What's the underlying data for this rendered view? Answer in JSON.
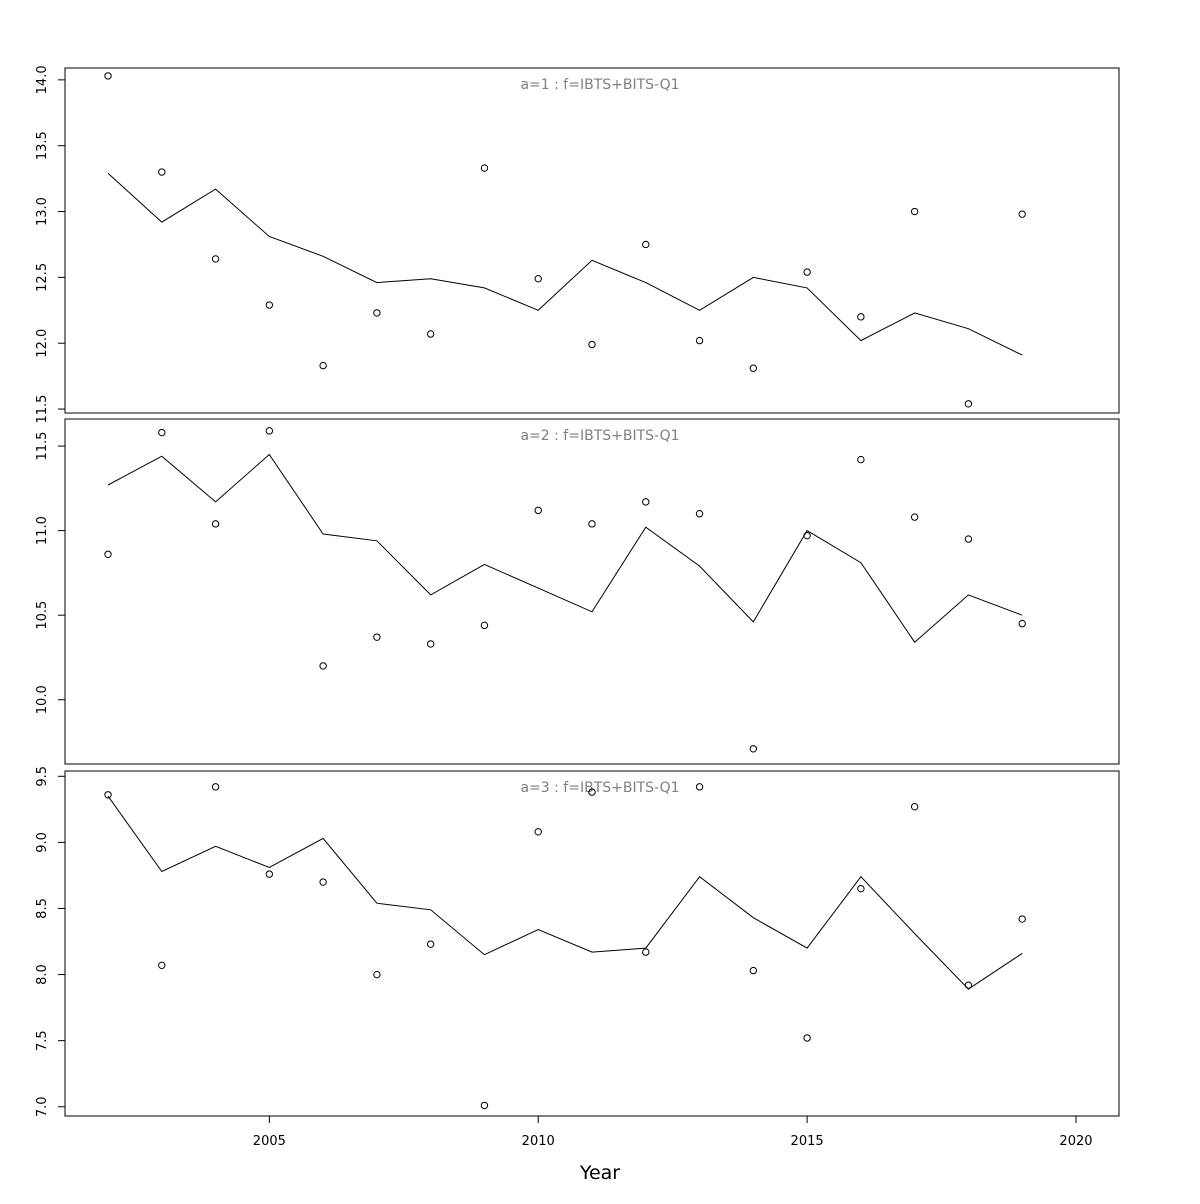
{
  "chart_data": {
    "type": "line",
    "xlabel": "Year",
    "x_ticks": [
      2005,
      2010,
      2015,
      2020
    ],
    "xlim": [
      2001.2,
      2020.8
    ],
    "series_style": {
      "line_color": "#000000",
      "point_color": "#000000",
      "title_color": "#808080"
    },
    "panels": [
      {
        "title": "a=1 : f=IBTS+BITS-Q1",
        "ylim": [
          11.47,
          14.09
        ],
        "y_ticks": [
          11.5,
          12.0,
          12.5,
          13.0,
          13.5,
          14.0
        ],
        "observed": {
          "x": [
            2002,
            2003,
            2004,
            2005,
            2006,
            2007,
            2008,
            2009,
            2010,
            2011,
            2012,
            2013,
            2014,
            2015,
            2016,
            2017,
            2018,
            2019
          ],
          "y": [
            14.03,
            13.3,
            12.64,
            12.29,
            11.83,
            12.23,
            12.07,
            13.33,
            12.49,
            11.99,
            12.75,
            12.02,
            11.81,
            12.54,
            12.2,
            13.0,
            11.54,
            12.98
          ]
        },
        "fitted": {
          "x": [
            2002,
            2003,
            2004,
            2005,
            2006,
            2007,
            2008,
            2009,
            2010,
            2011,
            2012,
            2013,
            2014,
            2015,
            2016,
            2017,
            2018,
            2019
          ],
          "y": [
            13.29,
            12.92,
            13.17,
            12.81,
            12.66,
            12.46,
            12.49,
            12.42,
            12.25,
            12.63,
            12.46,
            12.25,
            12.5,
            12.42,
            12.02,
            12.23,
            12.11,
            11.91
          ]
        }
      },
      {
        "title": "a=2 : f=IBTS+BITS-Q1",
        "ylim": [
          9.62,
          11.66
        ],
        "y_ticks": [
          10.0,
          10.5,
          11.0,
          11.5
        ],
        "observed": {
          "x": [
            2002,
            2003,
            2004,
            2005,
            2006,
            2007,
            2008,
            2009,
            2010,
            2011,
            2012,
            2013,
            2014,
            2015,
            2016,
            2017,
            2018,
            2019
          ],
          "y": [
            10.86,
            11.58,
            11.04,
            11.59,
            10.2,
            10.37,
            10.33,
            10.44,
            11.12,
            11.04,
            11.17,
            11.1,
            9.71,
            10.97,
            11.42,
            11.08,
            10.95,
            10.45
          ]
        },
        "fitted": {
          "x": [
            2002,
            2003,
            2004,
            2005,
            2006,
            2007,
            2008,
            2009,
            2010,
            2011,
            2012,
            2013,
            2014,
            2015,
            2016,
            2017,
            2018,
            2019
          ],
          "y": [
            11.27,
            11.44,
            11.17,
            11.45,
            10.98,
            10.94,
            10.62,
            10.8,
            10.66,
            10.52,
            11.02,
            10.79,
            10.46,
            11.0,
            10.81,
            10.34,
            10.62,
            10.5
          ]
        }
      },
      {
        "title": "a=3 : f=IBTS+BITS-Q1",
        "ylim": [
          6.93,
          9.54
        ],
        "y_ticks": [
          7.0,
          7.5,
          8.0,
          8.5,
          9.0,
          9.5
        ],
        "observed": {
          "x": [
            2002,
            2003,
            2004,
            2005,
            2006,
            2007,
            2008,
            2009,
            2010,
            2011,
            2012,
            2013,
            2014,
            2015,
            2016,
            2017,
            2018,
            2019
          ],
          "y": [
            9.36,
            8.07,
            9.42,
            8.76,
            8.7,
            8.0,
            8.23,
            7.01,
            9.08,
            9.38,
            8.17,
            9.42,
            8.03,
            7.52,
            8.65,
            9.27,
            7.92,
            8.42
          ]
        },
        "fitted": {
          "x": [
            2002,
            2003,
            2004,
            2005,
            2006,
            2007,
            2008,
            2009,
            2010,
            2011,
            2012,
            2013,
            2014,
            2015,
            2016,
            2017,
            2018,
            2019
          ],
          "y": [
            9.35,
            8.78,
            8.97,
            8.81,
            9.03,
            8.54,
            8.49,
            8.15,
            8.34,
            8.17,
            8.2,
            8.74,
            8.43,
            8.2,
            8.74,
            8.31,
            7.89,
            8.16
          ]
        }
      }
    ]
  }
}
